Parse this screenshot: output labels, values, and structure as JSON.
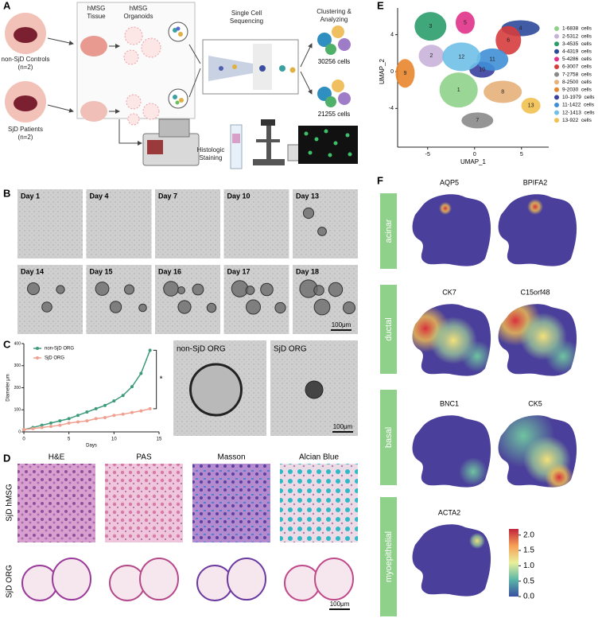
{
  "panels": {
    "A": {
      "label": "A",
      "hmsg_tissue": "hMSG Tissue",
      "hmsg_organoids": "hMSG Organoids",
      "controls": "non-SjD Controls",
      "controls_n": "(n=2)",
      "patients": "SjD Patients",
      "patients_n": "(n=2)",
      "sequencing": "Single Cell Sequencing",
      "clustering": "Clustering & Analyzing",
      "cells_top": "30256 cells",
      "cells_bottom": "21255 cells",
      "staining": "Histologic Staining"
    },
    "B": {
      "label": "B",
      "days": [
        "Day 1",
        "Day 4",
        "Day 7",
        "Day 10",
        "Day 13",
        "Day 14",
        "Day 15",
        "Day 16",
        "Day 17",
        "Day 18"
      ],
      "scale_bar": "100μm"
    },
    "C": {
      "label": "C",
      "chart_data": {
        "type": "line",
        "x_label": "Days",
        "y_label": "Diameter μm",
        "annotation": "*",
        "x": [
          0,
          1,
          2,
          3,
          4,
          5,
          6,
          7,
          8,
          9,
          10,
          11,
          12,
          13,
          14
        ],
        "series": [
          {
            "name": "non-SjD ORG",
            "color": "#3d9a7a",
            "values": [
              10,
              20,
              30,
              40,
              50,
              60,
              75,
              90,
              105,
              120,
              140,
              165,
              205,
              265,
              370
            ]
          },
          {
            "name": "SjD ORG",
            "color": "#f0a090",
            "values": [
              10,
              15,
              20,
              25,
              30,
              40,
              45,
              50,
              60,
              65,
              75,
              80,
              88,
              95,
              105
            ]
          }
        ],
        "xlim": [
          0,
          15
        ],
        "xticks": [
          0,
          5,
          10,
          15
        ],
        "ylim": [
          0,
          400
        ],
        "yticks": [
          0,
          100,
          200,
          300,
          400
        ]
      },
      "images": [
        "non-SjD ORG",
        "SjD ORG"
      ],
      "scale_bar": "100μm"
    },
    "D": {
      "label": "D",
      "headers": [
        "H&E",
        "PAS",
        "Masson",
        "Alcian Blue"
      ],
      "rows": [
        "SjD hMSG",
        "SjD ORG"
      ],
      "scale_bar": "100μm"
    },
    "E": {
      "label": "E",
      "chart_data": {
        "type": "scatter",
        "x_label": "UMAP_1",
        "y_label": "UMAP_2",
        "xlim": [
          -8.2,
          7.9
        ],
        "ylim": [
          -8.2,
          6.9
        ],
        "xticks": [
          -5,
          0,
          5
        ],
        "yticks": [
          -4,
          0,
          4
        ],
        "clusters": [
          {
            "name": "1-6838  cells",
            "label": "1",
            "color": "#8fd18a",
            "x": -1.7,
            "y": -2.0
          },
          {
            "name": "2-5312  cells",
            "label": "2",
            "color": "#c9b2d9",
            "x": -4.6,
            "y": 1.7
          },
          {
            "name": "3-4535  cells",
            "label": "3",
            "color": "#2a9d6a",
            "x": -4.7,
            "y": 4.9
          },
          {
            "name": "4-4319  cells",
            "label": "4",
            "color": "#2c4a9a",
            "x": 4.9,
            "y": 4.7
          },
          {
            "name": "5-4286  cells",
            "label": "5",
            "color": "#e0328a",
            "x": -1.0,
            "y": 5.3
          },
          {
            "name": "6-3007  cells",
            "label": "6",
            "color": "#d63c3c",
            "x": 3.6,
            "y": 3.4
          },
          {
            "name": "7-2758  cells",
            "label": "7",
            "color": "#8a8a8a",
            "x": 0.3,
            "y": -5.3
          },
          {
            "name": "8-2500  cells",
            "label": "8",
            "color": "#e6b07a",
            "x": 3.0,
            "y": -2.2
          },
          {
            "name": "9-2030  cells",
            "label": "9",
            "color": "#e8862e",
            "x": -7.4,
            "y": -0.2
          },
          {
            "name": "10-1979  cells",
            "label": "10",
            "color": "#3a3fa0",
            "x": 0.8,
            "y": 0.2
          },
          {
            "name": "11-1422  cells",
            "label": "11",
            "color": "#3f8fd6",
            "x": 1.9,
            "y": 1.3
          },
          {
            "name": "12-1413  cells",
            "label": "12",
            "color": "#6fc0e8",
            "x": -1.4,
            "y": 1.6
          },
          {
            "name": "13-922  cells",
            "label": "13",
            "color": "#f1c050",
            "x": 6.0,
            "y": -3.7
          }
        ]
      }
    },
    "F": {
      "label": "F",
      "groups": [
        {
          "name": "acinar",
          "genes": [
            "AQP5",
            "BPIFA2"
          ]
        },
        {
          "name": "ductal",
          "genes": [
            "CK7",
            "C15orf48"
          ]
        },
        {
          "name": "basal",
          "genes": [
            "BNC1",
            "CK5"
          ]
        },
        {
          "name": "myoepithelial",
          "genes": [
            "ACTA2"
          ]
        }
      ],
      "colorbar": {
        "lim": [
          0,
          2.2
        ],
        "ticks": [
          {
            "value": 0,
            "label": "0.0"
          },
          {
            "value": 0.5,
            "label": "0.5"
          },
          {
            "value": 1,
            "label": "1.0"
          },
          {
            "value": 1.5,
            "label": "1.5"
          },
          {
            "value": 2,
            "label": "2.0"
          }
        ]
      }
    }
  }
}
